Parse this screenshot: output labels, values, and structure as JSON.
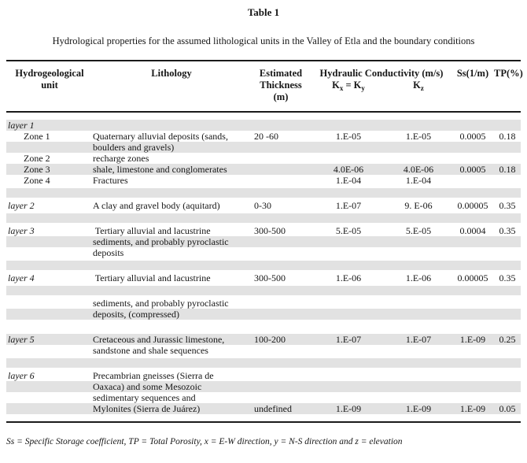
{
  "title": "Table 1",
  "caption": "Hydrological properties for the assumed lithological units in the Valley of Etla and the boundary conditions",
  "header": {
    "col_unit": [
      "Hydrogeological",
      "unit"
    ],
    "col_lithology": "Lithology",
    "col_thickness": [
      "Estimated",
      "Thickness",
      "(m)"
    ],
    "col_conductivity": "Hydraulic Conductivity (m/s)",
    "kxky": {
      "k1": "K",
      "sub1": "x",
      "k2": " = K",
      "sub2": "y"
    },
    "kz": {
      "k": "K",
      "sub": "z"
    },
    "col_ss": "Ss(1/m)",
    "col_tp": "TP(%)"
  },
  "rows": [
    {
      "unit": "layer 1",
      "unit_type": "layer",
      "lithology": "",
      "thickness": "",
      "kxky": "",
      "kz": "",
      "ss": "",
      "tp": "",
      "shaded": true
    },
    {
      "unit": "Zone 1",
      "unit_type": "zone",
      "lithology": "Quaternary alluvial deposits (sands,",
      "thickness": "20 -60",
      "kxky": "1.E-05",
      "kz": "1.E-05",
      "ss": "0.0005",
      "tp": "0.18",
      "shaded": false
    },
    {
      "unit": "",
      "lithology": "boulders and gravels)",
      "thickness": "",
      "kxky": "",
      "kz": "",
      "ss": "",
      "tp": "",
      "shaded": true
    },
    {
      "unit": "Zone 2",
      "unit_type": "zone",
      "lithology": "recharge zones",
      "thickness": "",
      "kxky": "",
      "kz": "",
      "ss": "",
      "tp": "",
      "shaded": false
    },
    {
      "unit": "Zone 3",
      "unit_type": "zone",
      "lithology": "shale, limestone and conglomerates",
      "thickness": "",
      "kxky": "4.0E-06",
      "kz": "4.0E-06",
      "ss": "0.0005",
      "tp": "0.18",
      "shaded": true
    },
    {
      "unit": "Zone 4",
      "unit_type": "zone",
      "lithology": "Fractures",
      "thickness": "",
      "kxky": "1.E-04",
      "kz": "1.E-04",
      "ss": "",
      "tp": "",
      "shaded": false
    },
    {
      "spacer": true,
      "shaded": true
    },
    {
      "unit": "layer 2",
      "unit_type": "layer",
      "lithology": "A clay and gravel body (aquitard)",
      "thickness": "0-30",
      "kxky": "1.E-07",
      "kz": "9. E-06",
      "ss": "0.00005",
      "tp": "0.35",
      "shaded": false
    },
    {
      "spacer": true,
      "shaded": true
    },
    {
      "unit": "layer 3",
      "unit_type": "layer",
      "lithology": " Tertiary alluvial and lacustrine",
      "thickness": "300-500",
      "kxky": "5.E-05",
      "kz": "5.E-05",
      "ss": "0.0004",
      "tp": "0.35",
      "shaded": false
    },
    {
      "unit": "",
      "lithology": "sediments, and probably pyroclastic",
      "thickness": "",
      "kxky": "",
      "kz": "",
      "ss": "",
      "tp": "",
      "shaded": true
    },
    {
      "unit": "",
      "lithology": "deposits",
      "thickness": "",
      "kxky": "",
      "kz": "",
      "ss": "",
      "tp": "",
      "shaded": false
    },
    {
      "spacer": true,
      "shaded": true
    },
    {
      "unit": "layer 4",
      "unit_type": "layer",
      "lithology": " Tertiary alluvial and lacustrine",
      "thickness": "300-500",
      "kxky": "1.E-06",
      "kz": "1.E-06",
      "ss": "0.00005",
      "tp": "0.35",
      "shaded": false
    },
    {
      "spacer": true,
      "shaded": true
    },
    {
      "unit": "",
      "lithology": "sediments, and probably pyroclastic",
      "thickness": "",
      "kxky": "",
      "kz": "",
      "ss": "",
      "tp": "",
      "shaded": false
    },
    {
      "unit": "",
      "lithology": "deposits, (compressed)",
      "thickness": "",
      "kxky": "",
      "kz": "",
      "ss": "",
      "tp": "",
      "shaded": true
    },
    {
      "spacer": true,
      "shaded": false
    },
    {
      "unit": "layer 5",
      "unit_type": "layer",
      "lithology": "Cretaceous and Jurassic limestone,",
      "thickness": "100-200",
      "kxky": "1.E-07",
      "kz": "1.E-07",
      "ss": "1.E-09",
      "tp": "0.25",
      "shaded": true
    },
    {
      "unit": "",
      "lithology": "sandstone and shale sequences",
      "thickness": "",
      "kxky": "",
      "kz": "",
      "ss": "",
      "tp": "",
      "shaded": false
    },
    {
      "spacer": true,
      "shaded": true
    },
    {
      "unit": "layer 6",
      "unit_type": "layer",
      "lithology": "Precambrian gneisses (Sierra de",
      "thickness": "",
      "kxky": "",
      "kz": "",
      "ss": "",
      "tp": "",
      "shaded": false
    },
    {
      "unit": "",
      "lithology": "Oaxaca) and some Mesozoic",
      "thickness": "",
      "kxky": "",
      "kz": "",
      "ss": "",
      "tp": "",
      "shaded": true
    },
    {
      "unit": "",
      "lithology": "sedimentary sequences and",
      "thickness": "",
      "kxky": "",
      "kz": "",
      "ss": "",
      "tp": "",
      "shaded": false
    },
    {
      "unit": "",
      "lithology": "Mylonites (Sierra de Juárez)",
      "thickness": "undefined",
      "kxky": "1.E-09",
      "kz": "1.E-09",
      "ss": "1.E-09",
      "tp": "0.05",
      "shaded": true
    }
  ],
  "footnote": "Ss = Specific Storage coefficient, TP = Total Porosity, x = E-W direction, y = N-S direction and z = elevation"
}
